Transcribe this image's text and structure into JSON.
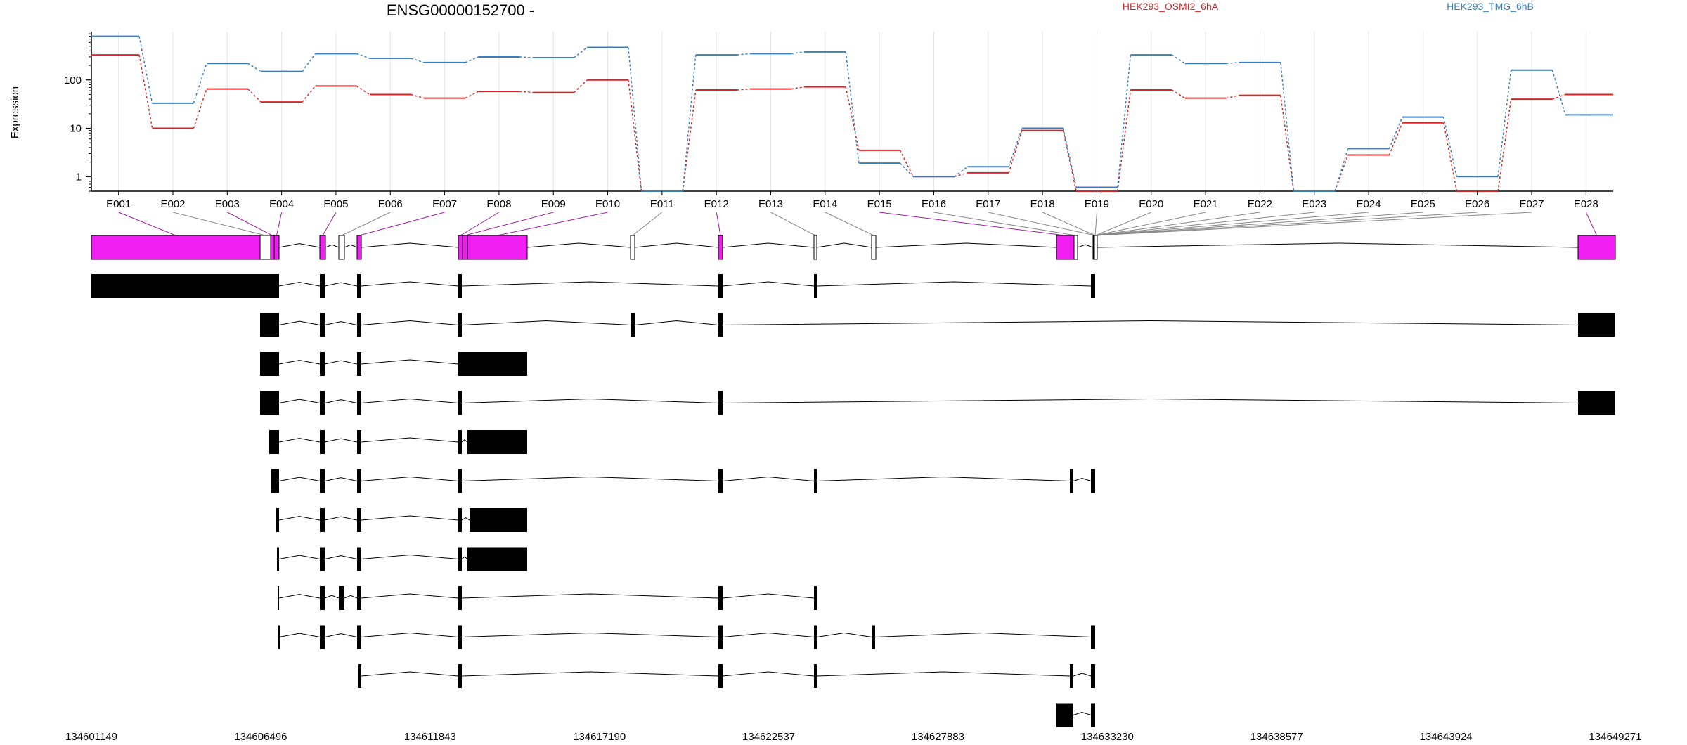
{
  "chart_data": {
    "type": "line",
    "title": "ENSG00000152700 -",
    "ylabel": "Expression",
    "yscale": "log",
    "yticks": [
      1,
      10,
      100
    ],
    "ytick_labels": [
      "1",
      "10",
      "100"
    ],
    "ylim": [
      0.5,
      1000
    ],
    "exons": [
      "E001",
      "E002",
      "E003",
      "E004",
      "E005",
      "E006",
      "E007",
      "E008",
      "E009",
      "E010",
      "E011",
      "E012",
      "E013",
      "E014",
      "E015",
      "E016",
      "E017",
      "E018",
      "E019",
      "E020",
      "E021",
      "E022",
      "E023",
      "E024",
      "E025",
      "E026",
      "E027",
      "E028"
    ],
    "legend": {
      "placement": "top-right"
    },
    "series": [
      {
        "name": "HEK293_OSMI2_6hA",
        "color": "#d62728",
        "values": [
          330,
          10,
          65,
          35,
          75,
          50,
          42,
          58,
          55,
          100,
          0.5,
          62,
          65,
          72,
          3.5,
          1.0,
          1.2,
          9,
          0.5,
          62,
          42,
          48,
          0.5,
          2.8,
          13,
          0.5,
          40,
          50
        ]
      },
      {
        "name": "HEK293_TMG_6hB",
        "color": "#3a7ebf",
        "values": [
          800,
          33,
          220,
          150,
          350,
          280,
          230,
          300,
          290,
          470,
          0.5,
          330,
          350,
          380,
          1.9,
          1.0,
          1.6,
          10,
          0.6,
          330,
          220,
          230,
          0.5,
          3.8,
          17,
          1.0,
          160,
          19
        ]
      }
    ],
    "coordinates": {
      "tick_labels": [
        "134601149",
        "134606496",
        "134611843",
        "134617190",
        "134622537",
        "134627883",
        "134633230",
        "134638577",
        "134643924",
        "134649271"
      ]
    }
  },
  "colors": {
    "exon_highlight": "#f01ef0",
    "exon_other": "#cccccc",
    "transcript": "#000000",
    "connector_purple": "#a020a0",
    "connector_gray": "#888888"
  }
}
